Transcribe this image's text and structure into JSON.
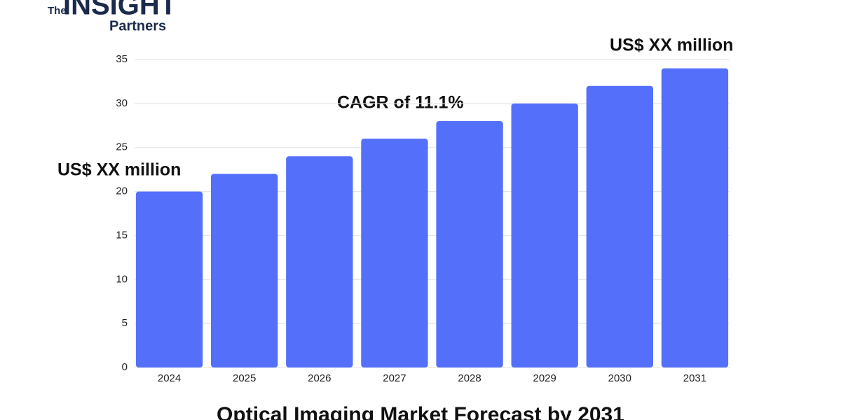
{
  "logo": {
    "top": "The",
    "main": "INSIGHT",
    "bottom": "Partners"
  },
  "chart_data": {
    "type": "bar",
    "title": "Optical Imaging Market Forecast by 2031",
    "categories": [
      "2024",
      "2025",
      "2026",
      "2027",
      "2028",
      "2029",
      "2030",
      "2031"
    ],
    "values": [
      20,
      22,
      24,
      26,
      28,
      30,
      32,
      34
    ],
    "color": "#5470fb",
    "ylim": [
      0,
      35
    ],
    "yticks": [
      0,
      5,
      10,
      15,
      20,
      25,
      30,
      35
    ],
    "grid": true,
    "annotations": [
      "US$ XX million",
      "CAGR of 11.1%",
      "US$ XX million"
    ]
  }
}
